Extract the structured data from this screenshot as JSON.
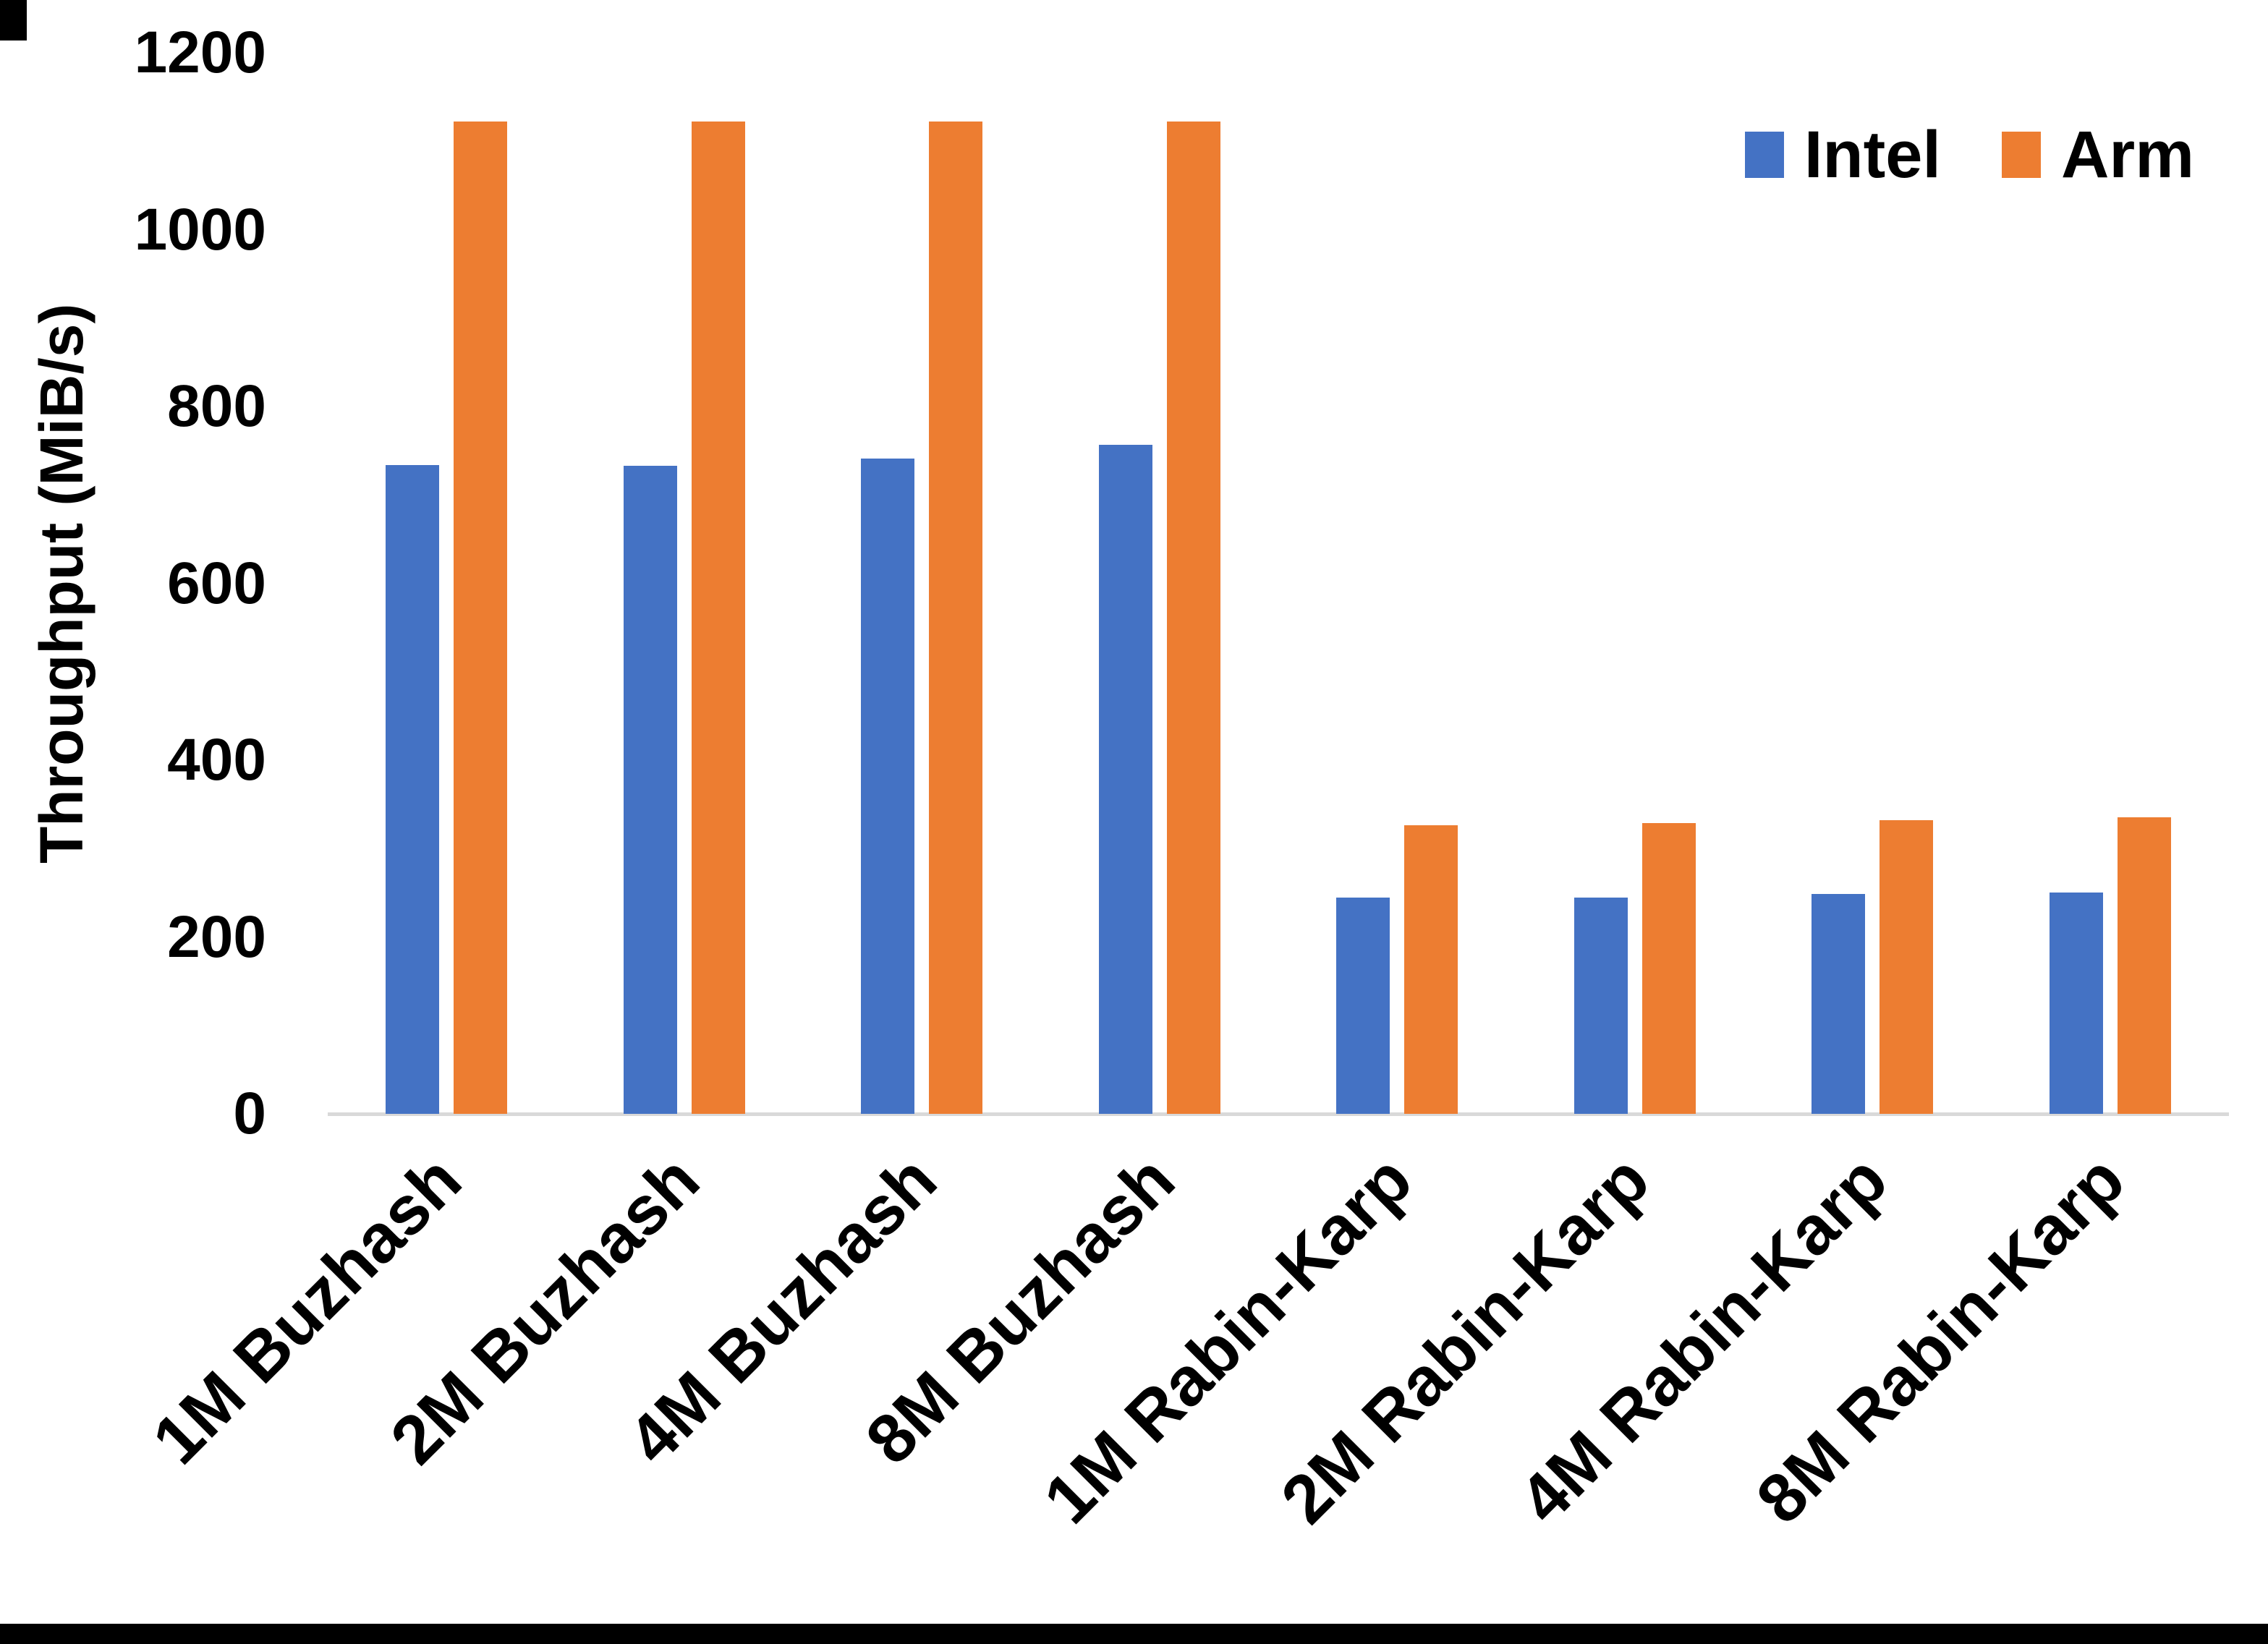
{
  "page": {
    "background": "#ffffff",
    "border_color": "#000000"
  },
  "chart_data": {
    "type": "bar",
    "title": "",
    "xlabel": "",
    "ylabel": "Throughput (MiB/s)",
    "ylim": [
      0,
      1200
    ],
    "yticks": [
      0,
      200,
      400,
      600,
      800,
      1000,
      1200
    ],
    "grid": false,
    "legend_position": "top-right",
    "axis_line_color": "#D9D9D9",
    "categories": [
      "1M Buzhash",
      "2M Buzhash",
      "4M Buzhash",
      "8M Buzhash",
      "1M Rabin-Karp",
      "2M Rabin-Karp",
      "4M Rabin-Karp",
      "8M Rabin-Karp"
    ],
    "series": [
      {
        "name": "Intel",
        "color": "#4472C4",
        "values": [
          734,
          733,
          741,
          757,
          245,
          245,
          249,
          250
        ]
      },
      {
        "name": "Arm",
        "color": "#ED7D31",
        "values": [
          1122,
          1122,
          1122,
          1122,
          326,
          329,
          332,
          335
        ]
      }
    ]
  }
}
